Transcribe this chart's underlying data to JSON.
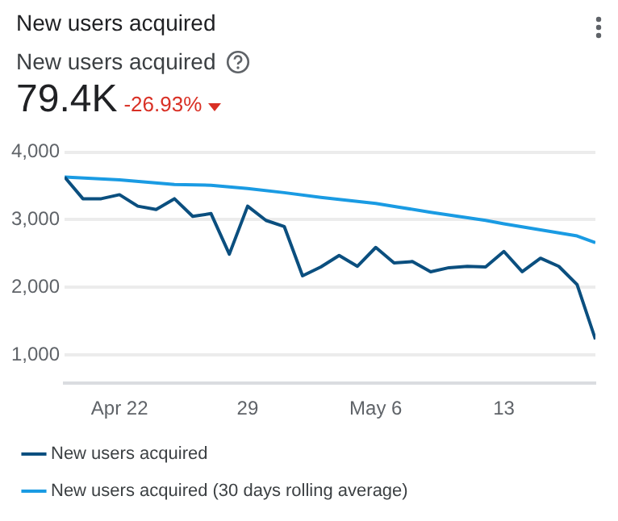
{
  "chart_data": {
    "type": "line",
    "title": "New users acquired",
    "subtitle": "New users acquired",
    "annotations": [
      "79.4K",
      "-26.93%"
    ],
    "x": [
      "--04-19",
      "--04-20",
      "--04-21",
      "--04-22",
      "--04-23",
      "--04-24",
      "--04-25",
      "--04-26",
      "--04-27",
      "--04-28",
      "--04-29",
      "--04-30",
      "--05-01",
      "--05-02",
      "--05-03",
      "--05-04",
      "--05-05",
      "--05-06",
      "--05-07",
      "--05-08",
      "--05-09",
      "--05-10",
      "--05-11",
      "--05-12",
      "--05-13",
      "--05-14",
      "--05-15",
      "--05-16",
      "--05-17",
      "--05-18"
    ],
    "series": [
      {
        "name": "New users acquired",
        "color": "#0b4f7f",
        "values": [
          3630,
          3310,
          3310,
          3370,
          3200,
          3150,
          3310,
          3050,
          3090,
          2490,
          3200,
          2990,
          2900,
          2170,
          2300,
          2470,
          2310,
          2590,
          2360,
          2380,
          2230,
          2290,
          2310,
          2300,
          2530,
          2230,
          2430,
          2310,
          2040,
          1230
        ]
      },
      {
        "name": "New users acquired (30 days rolling average)",
        "color": "#1a9be3",
        "x": [
          "--04-19",
          "--04-22",
          "--04-25",
          "--04-27",
          "--04-29",
          "--05-01",
          "--05-03",
          "--05-06",
          "--05-09",
          "--05-12",
          "--05-13",
          "--05-15",
          "--05-17",
          "--05-18"
        ],
        "values": [
          3630,
          3590,
          3520,
          3510,
          3460,
          3400,
          3330,
          3240,
          3110,
          2990,
          2940,
          2850,
          2760,
          2660
        ]
      }
    ],
    "xlim": [
      "--04-19",
      "--05-18"
    ],
    "xticks": [
      {
        "value": "--04-22",
        "label": "Apr 22"
      },
      {
        "value": "--04-29",
        "label": "29"
      },
      {
        "value": "--05-06",
        "label": "May 6"
      },
      {
        "value": "--05-13",
        "label": "13"
      }
    ],
    "ylim": [
      580,
      4050
    ],
    "yticks": [
      {
        "value": 1000,
        "label": "1,000"
      },
      {
        "value": 2000,
        "label": "2,000"
      },
      {
        "value": 3000,
        "label": "3,000"
      },
      {
        "value": 4000,
        "label": "4,000"
      }
    ],
    "grid": "y",
    "legend": "bottom",
    "marker": "none",
    "line_style": "solid"
  }
}
